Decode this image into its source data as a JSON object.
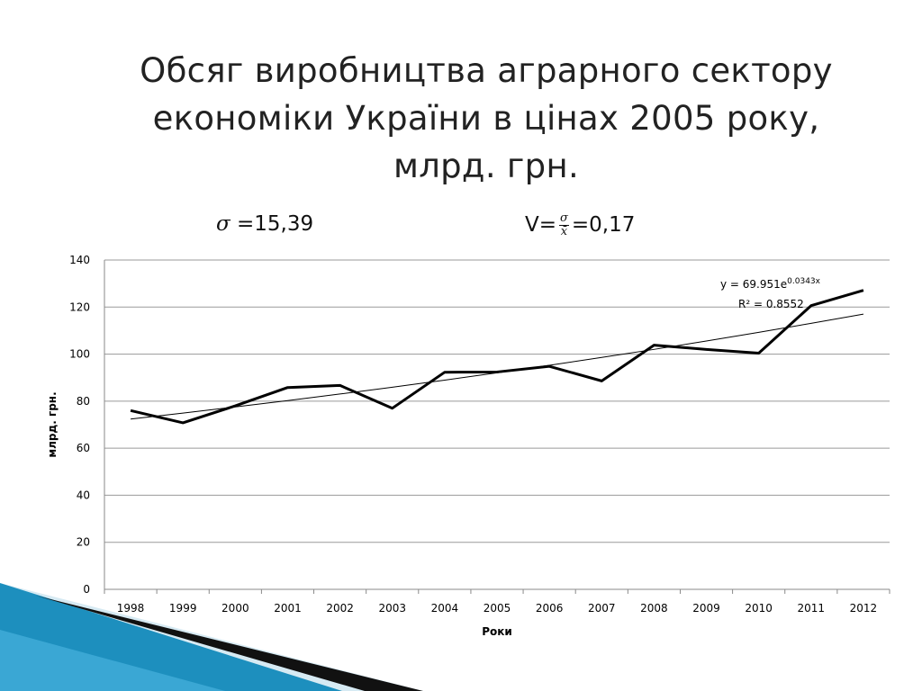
{
  "slide": {
    "title_lines": [
      "Обсяг виробництва аграрного сектору",
      "економіки  України в цінах 2005 року,",
      "млрд. грн."
    ],
    "stats": {
      "sigma_symbol": "σ",
      "sigma_value": "=15,39",
      "cv_prefix": "V=",
      "cv_num": "σ",
      "cv_den": "x̄",
      "cv_value": "=0,17"
    }
  },
  "colors": {
    "series": "#000000",
    "trend": "#000000",
    "grid": "#9a9a9a",
    "decor_blue": "#1d8fbe",
    "decor_light": "#d6eaf3"
  },
  "chart_data": {
    "type": "line",
    "title": "",
    "xlabel": "Роки",
    "ylabel": "млрд. грн.",
    "ylim": [
      0,
      140
    ],
    "yticks": [
      0,
      20,
      40,
      60,
      80,
      100,
      120,
      140
    ],
    "grid": true,
    "legend": "none",
    "categories": [
      "1998",
      "1999",
      "2000",
      "2001",
      "2002",
      "2003",
      "2004",
      "2005",
      "2006",
      "2007",
      "2008",
      "2009",
      "2010",
      "2011",
      "2012"
    ],
    "series": [
      {
        "values": [
          76,
          70.8,
          78,
          85.8,
          86.7,
          77,
          92.3,
          92.4,
          94.8,
          88.6,
          103.8,
          102,
          100.4,
          120.6,
          127.1
        ]
      }
    ],
    "trendline": {
      "type": "exponential",
      "a": 69.951,
      "b": 0.0343,
      "equation_prefix": "y = 69.951e",
      "equation_exponent": "0.0343x",
      "r_squared": "R² = 0.8552"
    }
  }
}
